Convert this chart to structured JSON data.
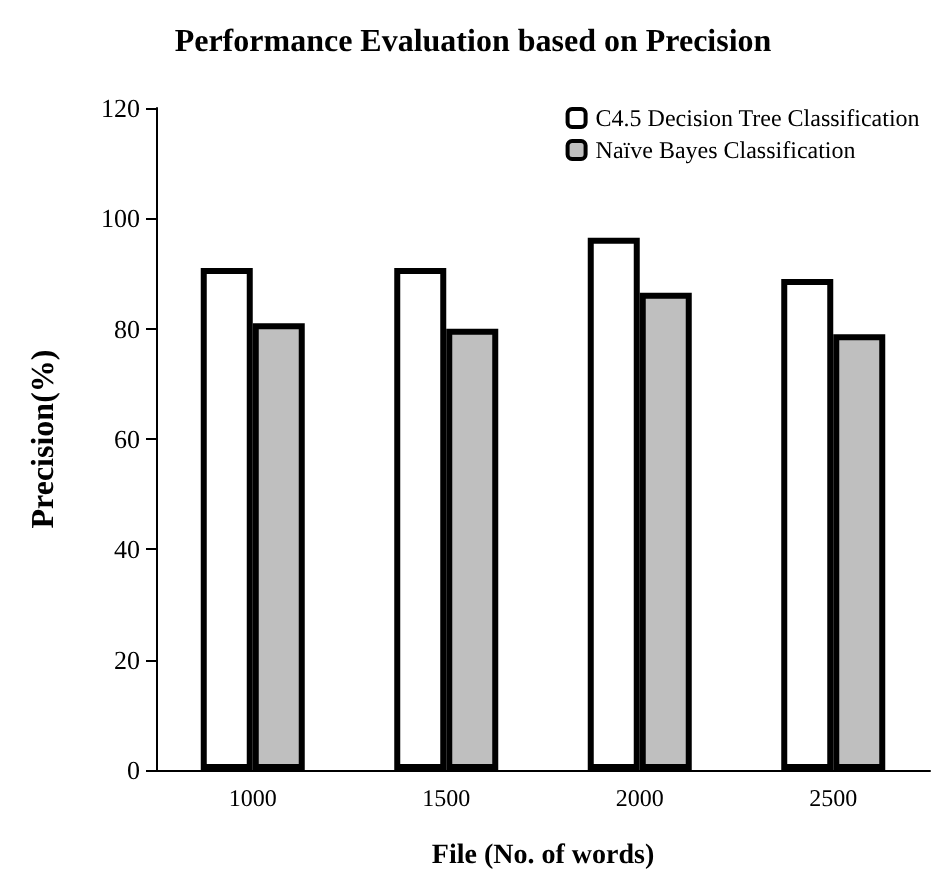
{
  "chart_data": {
    "type": "bar",
    "title": "Performance Evaluation based on Precision",
    "xlabel": "File (No. of words)",
    "ylabel": "Precision(%)",
    "categories": [
      "1000",
      "1500",
      "2000",
      "2500"
    ],
    "series": [
      {
        "name": "C4.5 Decision Tree Classification",
        "color": "#ffffff",
        "values": [
          91,
          91,
          96.5,
          89
        ]
      },
      {
        "name": "Naïve Bayes Classification",
        "color": "#bfbfbf",
        "values": [
          81,
          80,
          86.5,
          79
        ]
      }
    ],
    "ylim": [
      0,
      120
    ],
    "yticks": [
      0,
      20,
      40,
      60,
      80,
      100,
      120
    ],
    "grid": false,
    "legend": "top right"
  }
}
